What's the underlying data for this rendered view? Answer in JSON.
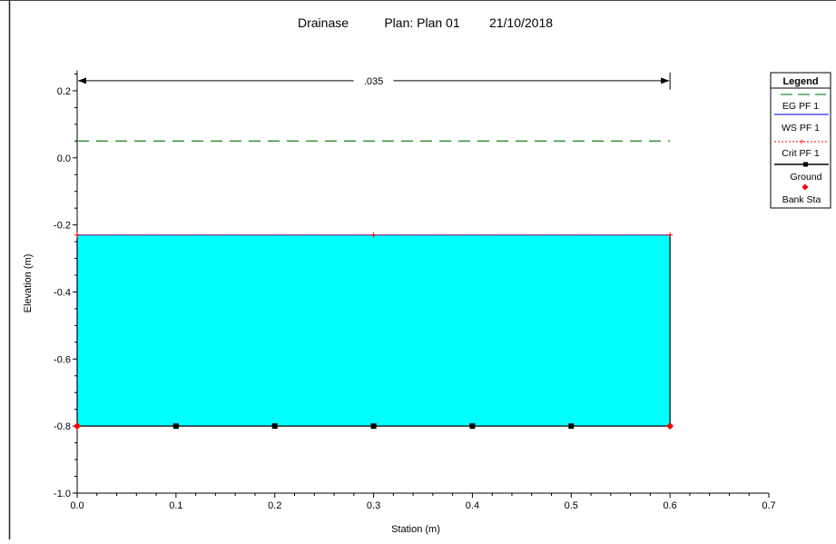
{
  "chart_data": {
    "type": "line",
    "title": {
      "name": "Drainase",
      "plan": "Plan: Plan 01",
      "date": "21/10/2018"
    },
    "xlabel": "Station (m)",
    "ylabel": "Elevation (m)",
    "xlim": [
      0,
      0.7
    ],
    "ylim": [
      -1.0,
      0.25
    ],
    "x_ticks": [
      0.0,
      0.1,
      0.2,
      0.3,
      0.4,
      0.5,
      0.6,
      0.7
    ],
    "x_tick_labels": [
      "0.0",
      "0.1",
      "0.2",
      "0.3",
      "0.4",
      "0.5",
      "0.6",
      "0.7"
    ],
    "y_ticks": [
      0.2,
      0.0,
      -0.2,
      -0.4,
      -0.6,
      -0.8,
      -1.0
    ],
    "y_tick_labels": [
      "0.2",
      "0.0",
      "-0.2",
      "-0.4",
      "-0.6",
      "-0.8",
      "-1.0"
    ],
    "grid": false,
    "legend_position": "right",
    "manning_label": ".035",
    "manning_span": [
      0.0,
      0.6
    ],
    "manning_elevation": 0.23,
    "water_fill_color": "#00ffff",
    "series": [
      {
        "name": "EG PF 1",
        "color": "#2e8b2e",
        "style": "dashed",
        "x": [
          0.0,
          0.6
        ],
        "y": [
          0.05,
          0.05
        ]
      },
      {
        "name": "WS PF 1",
        "color": "#2b2bff",
        "style": "solid",
        "x": [
          0.0,
          0.6
        ],
        "y": [
          -0.23,
          -0.23
        ]
      },
      {
        "name": "Crit PF 1",
        "color": "#ff0000",
        "style": "dotted",
        "x": [
          0.0,
          0.3,
          0.6
        ],
        "y": [
          -0.23,
          -0.23,
          -0.23
        ]
      },
      {
        "name": "Ground",
        "color": "#000000",
        "style": "solid-square",
        "x": [
          0.0,
          0.0,
          0.1,
          0.2,
          0.3,
          0.4,
          0.5,
          0.6,
          0.6
        ],
        "y": [
          -0.23,
          -0.8,
          -0.8,
          -0.8,
          -0.8,
          -0.8,
          -0.8,
          -0.8,
          -0.23
        ],
        "marker_x": [
          0.1,
          0.2,
          0.3,
          0.4,
          0.5
        ]
      },
      {
        "name": "Bank Sta",
        "color": "#ff0000",
        "style": "marker",
        "x": [
          0.0,
          0.6
        ],
        "y": [
          -0.8,
          -0.8
        ]
      }
    ]
  }
}
